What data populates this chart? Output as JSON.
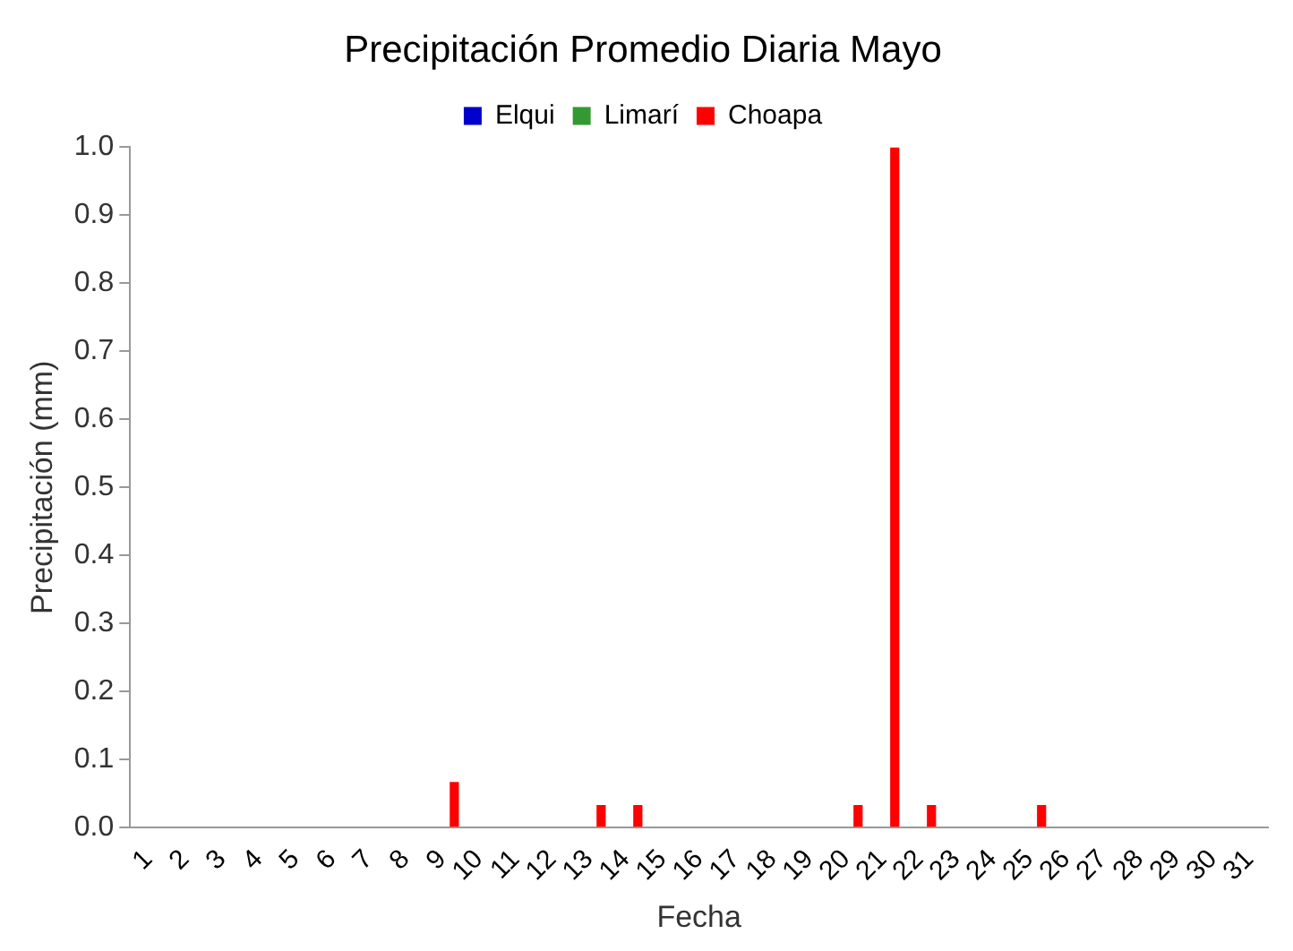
{
  "chart_data": {
    "type": "bar",
    "title": "Precipitación Promedio Diaria Mayo",
    "xlabel": "Fecha",
    "ylabel": "Precipitación (mm)",
    "categories": [
      "1",
      "2",
      "3",
      "4",
      "5",
      "6",
      "7",
      "8",
      "9",
      "10",
      "11",
      "12",
      "13",
      "14",
      "15",
      "16",
      "17",
      "18",
      "19",
      "20",
      "21",
      "22",
      "23",
      "24",
      "25",
      "26",
      "27",
      "28",
      "29",
      "30",
      "31"
    ],
    "series": [
      {
        "name": "Elqui",
        "color": "#0000cc",
        "values": [
          0,
          0,
          0,
          0,
          0,
          0,
          0,
          0,
          0,
          0,
          0,
          0,
          0,
          0,
          0,
          0,
          0,
          0,
          0,
          0,
          0,
          0,
          0,
          0,
          0,
          0,
          0,
          0,
          0,
          0,
          0
        ]
      },
      {
        "name": "Limarí",
        "color": "#339933",
        "values": [
          0,
          0,
          0,
          0,
          0,
          0,
          0,
          0,
          0,
          0,
          0,
          0,
          0,
          0,
          0,
          0,
          0,
          0,
          0,
          0,
          0,
          0,
          0,
          0,
          0,
          0,
          0,
          0,
          0,
          0,
          0
        ]
      },
      {
        "name": "Choapa",
        "color": "#ff0000",
        "values": [
          0,
          0,
          0,
          0,
          0,
          0,
          0,
          0,
          0.067,
          0,
          0,
          0,
          0.033,
          0.033,
          0,
          0,
          0,
          0,
          0,
          0.033,
          1.0,
          0.033,
          0,
          0,
          0.033,
          0,
          0,
          0,
          0,
          0,
          0
        ]
      }
    ],
    "ylim": [
      0,
      1
    ],
    "yticks": [
      {
        "value": 0,
        "label": "0.0"
      },
      {
        "value": 0.1,
        "label": "0.1"
      },
      {
        "value": 0.2,
        "label": "0.2"
      },
      {
        "value": 0.3,
        "label": "0.3"
      },
      {
        "value": 0.4,
        "label": "0.4"
      },
      {
        "value": 0.5,
        "label": "0.5"
      },
      {
        "value": 0.6,
        "label": "0.6"
      },
      {
        "value": 0.7,
        "label": "0.7"
      },
      {
        "value": 0.8,
        "label": "0.8"
      },
      {
        "value": 0.9,
        "label": "0.9"
      },
      {
        "value": 1,
        "label": "1.0"
      }
    ],
    "grid": false,
    "legend": "top"
  }
}
